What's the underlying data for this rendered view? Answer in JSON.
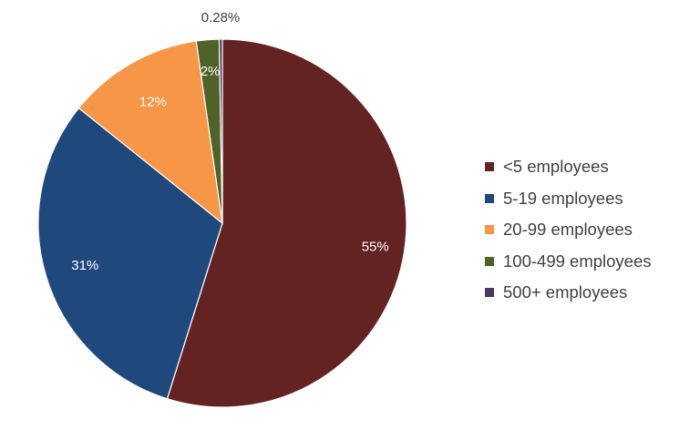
{
  "chart_data": {
    "type": "pie",
    "title": "",
    "legend_position": "right",
    "start_angle_deg": 0,
    "direction": "clockwise",
    "slices": [
      {
        "label": "<5 employees",
        "value": 55,
        "display": "55%",
        "color": "#632323",
        "label_color": "#ffffff"
      },
      {
        "label": "5-19 employees",
        "value": 31,
        "display": "31%",
        "color": "#1f497d",
        "label_color": "#ffffff"
      },
      {
        "label": "20-99 employees",
        "value": 12,
        "display": "12%",
        "color": "#f79646",
        "label_color": "#ffffff"
      },
      {
        "label": "100-499 employees",
        "value": 2,
        "display": "2%",
        "color": "#4f6228",
        "label_color": "#ffffff"
      },
      {
        "label": "500+ employees",
        "value": 0.28,
        "display": "0.28%",
        "color": "#4b3a5c",
        "label_color": "#404040"
      }
    ]
  }
}
